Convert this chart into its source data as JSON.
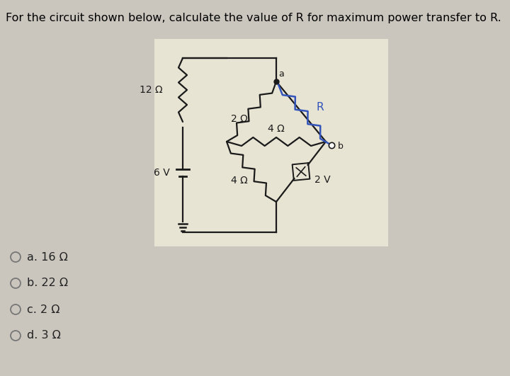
{
  "title": "For the circuit shown below, calculate the value of R for maximum power transfer to R.",
  "title_fontsize": 11.5,
  "page_bg": "#cac6be",
  "circuit_bg": "#e8e4d4",
  "wire_color": "#1a1a1a",
  "blue_color": "#3355bb",
  "choices": [
    "a. 16 Ω",
    "b. 22 Ω",
    "c. 2 Ω",
    "d. 3 Ω"
  ],
  "label_12ohm": "12 Ω",
  "label_2ohm": "2 Ω",
  "label_4ohm_h": "4 Ω",
  "label_4ohm_d": "4 Ω",
  "label_R": "R",
  "label_6V": "6 V",
  "label_2V": "2 V",
  "label_a": "a",
  "label_b": "b"
}
